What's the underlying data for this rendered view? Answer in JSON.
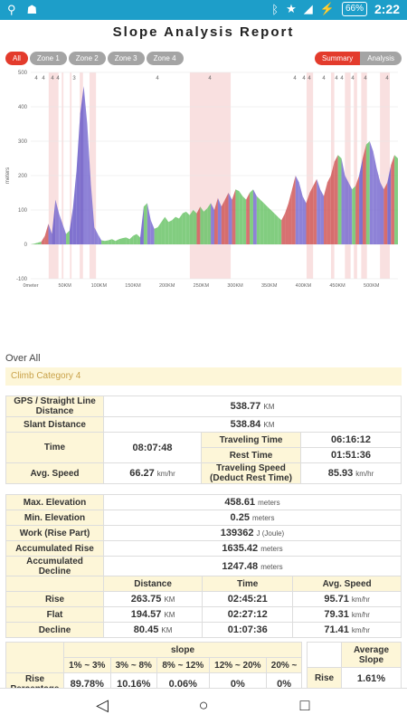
{
  "status": {
    "time": "2:22",
    "battery": "66%"
  },
  "title": "Slope Analysis Report",
  "tabs": {
    "left": [
      "All",
      "Zone 1",
      "Zone 2",
      "Zone 3",
      "Zone 4"
    ],
    "right": [
      "Summary",
      "Analysis"
    ]
  },
  "section": {
    "overall": "Over All",
    "climb": "Climb Category 4"
  },
  "chart_data": {
    "type": "area",
    "ylabel": "meters",
    "ylim": [
      -100,
      500
    ],
    "yticks": [
      -100,
      0,
      100,
      200,
      300,
      400,
      500
    ],
    "xticks": [
      "0meter",
      "50KM",
      "100KM",
      "150KM",
      "200KM",
      "250KM",
      "300KM",
      "350KM",
      "400KM",
      "450KM",
      "500KM"
    ],
    "xlim": [
      0,
      538.84
    ],
    "grade_markers": [
      "4",
      "4",
      "4",
      "4",
      "3",
      "4",
      "4",
      "4",
      "4",
      "4",
      "4",
      "4",
      "4",
      "4",
      "4",
      "4"
    ],
    "elevation_profile": [
      0,
      2,
      5,
      8,
      25,
      60,
      30,
      130,
      90,
      60,
      30,
      40,
      110,
      220,
      380,
      460,
      350,
      180,
      50,
      30,
      12,
      10,
      12,
      15,
      10,
      15,
      18,
      20,
      15,
      25,
      30,
      20,
      110,
      120,
      70,
      45,
      50,
      65,
      80,
      65,
      70,
      80,
      75,
      90,
      95,
      85,
      100,
      90,
      110,
      95,
      105,
      120,
      100,
      135,
      110,
      130,
      150,
      130,
      160,
      155,
      140,
      130,
      150,
      160,
      140,
      130,
      120,
      110,
      100,
      90,
      80,
      70,
      90,
      120,
      160,
      200,
      180,
      140,
      120,
      150,
      170,
      190,
      160,
      140,
      180,
      200,
      240,
      260,
      250,
      200,
      180,
      160,
      170,
      200,
      250,
      290,
      300,
      270,
      220,
      180,
      160,
      180,
      230,
      260,
      250
    ]
  },
  "table1": {
    "gps_label": "GPS / Straight Line Distance",
    "gps_value": "538.77",
    "km": "KM",
    "slant_label": "Slant Distance",
    "slant_value": "538.84",
    "time_label": "Time",
    "time_value": "08:07:48",
    "traveling_label": "Traveling Time",
    "traveling_value": "06:16:12",
    "rest_label": "Rest Time",
    "rest_value": "01:51:36",
    "avg_label": "Avg. Speed",
    "avg_value": "66.27",
    "kmhr": "km/hr",
    "tspeed_label": "Traveling Speed (Deduct Rest Time)",
    "tspeed_value": "85.93"
  },
  "table2": {
    "maxel_label": "Max. Elevation",
    "maxel_value": "458.61",
    "meters": "meters",
    "minel_label": "Min. Elevation",
    "minel_value": "0.25",
    "work_label": "Work (Rise Part)",
    "work_value": "139362",
    "joule": "J (Joule)",
    "accrise_label": "Accumulated Rise",
    "accrise_value": "1635.42",
    "accdec_label": "Accumulated Decline",
    "accdec_value": "1247.48"
  },
  "table3": {
    "headers": [
      "",
      "Distance",
      "Time",
      "Avg. Speed"
    ],
    "rows": [
      {
        "label": "Rise",
        "dist": "263.75",
        "time": "02:45:21",
        "speed": "95.71"
      },
      {
        "label": "Flat",
        "dist": "194.57",
        "time": "02:27:12",
        "speed": "79.31"
      },
      {
        "label": "Decline",
        "dist": "80.45",
        "time": "01:07:36",
        "speed": "71.41"
      }
    ]
  },
  "table4": {
    "slope_label": "slope",
    "ranges": [
      "1% ~ 3%",
      "3% ~ 8%",
      "8% ~ 12%",
      "12% ~ 20%",
      "20% ~"
    ],
    "rise_pct_label": "Rise Percentage",
    "values": [
      "89.78%",
      "10.16%",
      "0.06%",
      "0%",
      "0%"
    ]
  },
  "table5": {
    "header": "Average Slope",
    "rise_label": "Rise",
    "rise_value": "1.61%"
  }
}
